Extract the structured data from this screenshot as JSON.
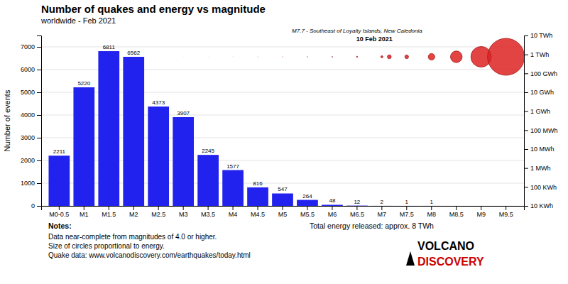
{
  "chart_data": {
    "type": "bar",
    "title": "Number of quakes and energy vs magnitude",
    "subtitle": "worldwide - Feb 2021",
    "categories": [
      "M0-0.5",
      "M1",
      "M1.5",
      "M2",
      "M2.5",
      "M3",
      "M3.5",
      "M4",
      "M4.5",
      "M5",
      "M5.5",
      "M6",
      "M6.5",
      "M7",
      "M7.5",
      "M8",
      "M8.5",
      "M9",
      "M9.5"
    ],
    "values": [
      2211,
      5220,
      6811,
      6562,
      4373,
      3907,
      2245,
      1577,
      816,
      547,
      264,
      48,
      12,
      2,
      1,
      1,
      0,
      0,
      0
    ],
    "data_labels": true,
    "value_labels": [
      "2211",
      "5220",
      "6811",
      "6562",
      "4373",
      "3907",
      "2245",
      "1577",
      "816",
      "547",
      "264",
      "48",
      "12",
      "2",
      "1",
      "1",
      null,
      null,
      null
    ],
    "color": "#2222ee",
    "ylabel": "Number of events",
    "ylim": [
      0,
      7500
    ],
    "yticks": [
      0,
      1000,
      2000,
      3000,
      4000,
      5000,
      6000,
      7000
    ],
    "y2lim": [
      0,
      7500
    ],
    "y2ticks": [
      {
        "value": 0,
        "label": "10 KWh"
      },
      {
        "value": 833.3333333333334,
        "label": "100 KWh"
      },
      {
        "value": 1666.6666666666667,
        "label": "1 MWh"
      },
      {
        "value": 2500,
        "label": "10 MWh"
      },
      {
        "value": 3333.3333333333335,
        "label": "100 MWh"
      },
      {
        "value": 4166.666666666667,
        "label": "1 GWh"
      },
      {
        "value": 5000,
        "label": "10 GWh"
      },
      {
        "value": 5833.333333333334,
        "label": "100 GWh"
      },
      {
        "value": 6666.666666666667,
        "label": "1 TWh"
      },
      {
        "value": 7500,
        "label": "10 TWh"
      }
    ],
    "grid": true,
    "energy_kwh": [
      0.16,
      0.5,
      1.6,
      5,
      16,
      50,
      160,
      500,
      1600,
      5000,
      16000,
      50000,
      160000,
      500000,
      1600000,
      5000000,
      16000000,
      50000000,
      160000000
    ],
    "circle_color": "#dd2222",
    "highlight_index": 13,
    "highlight_energy_kwh": 1750000,
    "highlight_label": "M7.7 - Southeast of Loyalty Islands, New Caledonia",
    "highlight_date": "10 Feb 2021",
    "notes": [
      "Notes:",
      "Data near-complete from magnitudes of 4.0 or higher.",
      "Size of circles proportional to energy.",
      "Quake data: www.volcanodiscovery.com/earthquakes/today.html"
    ],
    "total_energy": "Total energy released: approx. 8 TWh",
    "logo": [
      "VOLCANO",
      "DISCOVERY"
    ],
    "logo_colors": [
      "#000000",
      "#cc0000"
    ]
  }
}
